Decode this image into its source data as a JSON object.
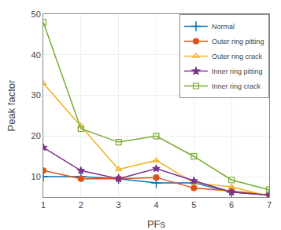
{
  "chart_data": {
    "type": "line",
    "x": [
      1,
      2,
      3,
      4,
      5,
      6,
      7
    ],
    "series": [
      {
        "name": "Normal",
        "color": "#0072BD",
        "marker": "plus",
        "values": [
          10.0,
          10.0,
          9.5,
          8.5,
          8.5,
          6.2,
          5.5
        ]
      },
      {
        "name": "Outer ring pitting",
        "color": "#D95319",
        "marker": "circle",
        "values": [
          11.5,
          9.5,
          9.5,
          9.8,
          7.2,
          6.5,
          5.5
        ]
      },
      {
        "name": "Outer ring crack",
        "color": "#EDB120",
        "marker": "triangle-open",
        "values": [
          33.0,
          22.5,
          11.8,
          14.0,
          8.5,
          7.5,
          5.2
        ]
      },
      {
        "name": "Inner ring pitting",
        "color": "#7E2F8E",
        "marker": "star",
        "values": [
          17.2,
          11.5,
          9.5,
          12.0,
          9.0,
          6.2,
          5.5
        ]
      },
      {
        "name": "Inner ring crack",
        "color": "#77AC30",
        "marker": "square-open",
        "values": [
          48.0,
          21.8,
          18.5,
          20.0,
          15.0,
          9.2,
          6.8
        ]
      }
    ],
    "xlabel": "PFs",
    "ylabel": "Peak factor",
    "xlim": [
      1,
      7
    ],
    "ylim": [
      5,
      50
    ],
    "xticks": [
      1,
      2,
      3,
      4,
      5,
      6,
      7
    ],
    "yticks": [
      10,
      20,
      30,
      40,
      50
    ],
    "grid": true,
    "legend": "upper right"
  }
}
